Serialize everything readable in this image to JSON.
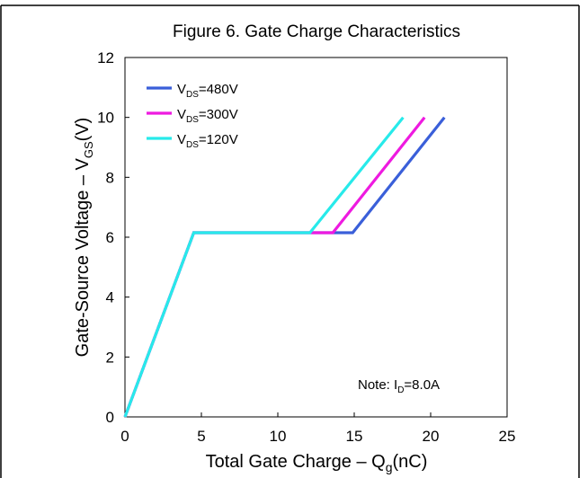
{
  "chart_data": {
    "type": "line",
    "title": "Figure 6. Gate Charge Characteristics",
    "xlabel": {
      "main": "Total Gate Charge – Q",
      "sub": "g",
      "unit": "(nC)"
    },
    "ylabel": {
      "main": "Gate-Source Voltage – V",
      "sub": "GS",
      "unit": "(V)"
    },
    "xlim": [
      0,
      25
    ],
    "ylim": [
      0,
      12
    ],
    "xticks": [
      0,
      5,
      10,
      15,
      20,
      25
    ],
    "yticks": [
      0,
      2,
      4,
      6,
      8,
      10,
      12
    ],
    "grid": false,
    "legend_position": "top-left",
    "series": [
      {
        "name": {
          "main": "V",
          "sub": "DS",
          "rest": "=480V"
        },
        "color": "#3a5fd9",
        "x": [
          0,
          4.5,
          14.9,
          20.9
        ],
        "y": [
          0,
          6.15,
          6.15,
          10.0
        ]
      },
      {
        "name": {
          "main": "V",
          "sub": "DS",
          "rest": "=300V"
        },
        "color": "#ee1ae0",
        "x": [
          0,
          4.5,
          13.6,
          19.6
        ],
        "y": [
          0,
          6.15,
          6.15,
          10.0
        ]
      },
      {
        "name": {
          "main": "V",
          "sub": "DS",
          "rest": "=120V"
        },
        "color": "#27eaea",
        "x": [
          0,
          4.5,
          12.1,
          18.2
        ],
        "y": [
          0,
          6.15,
          6.15,
          10.0
        ]
      }
    ],
    "annotation": {
      "main": "Note: I",
      "sub": "D",
      "rest": "=8.0A"
    }
  }
}
